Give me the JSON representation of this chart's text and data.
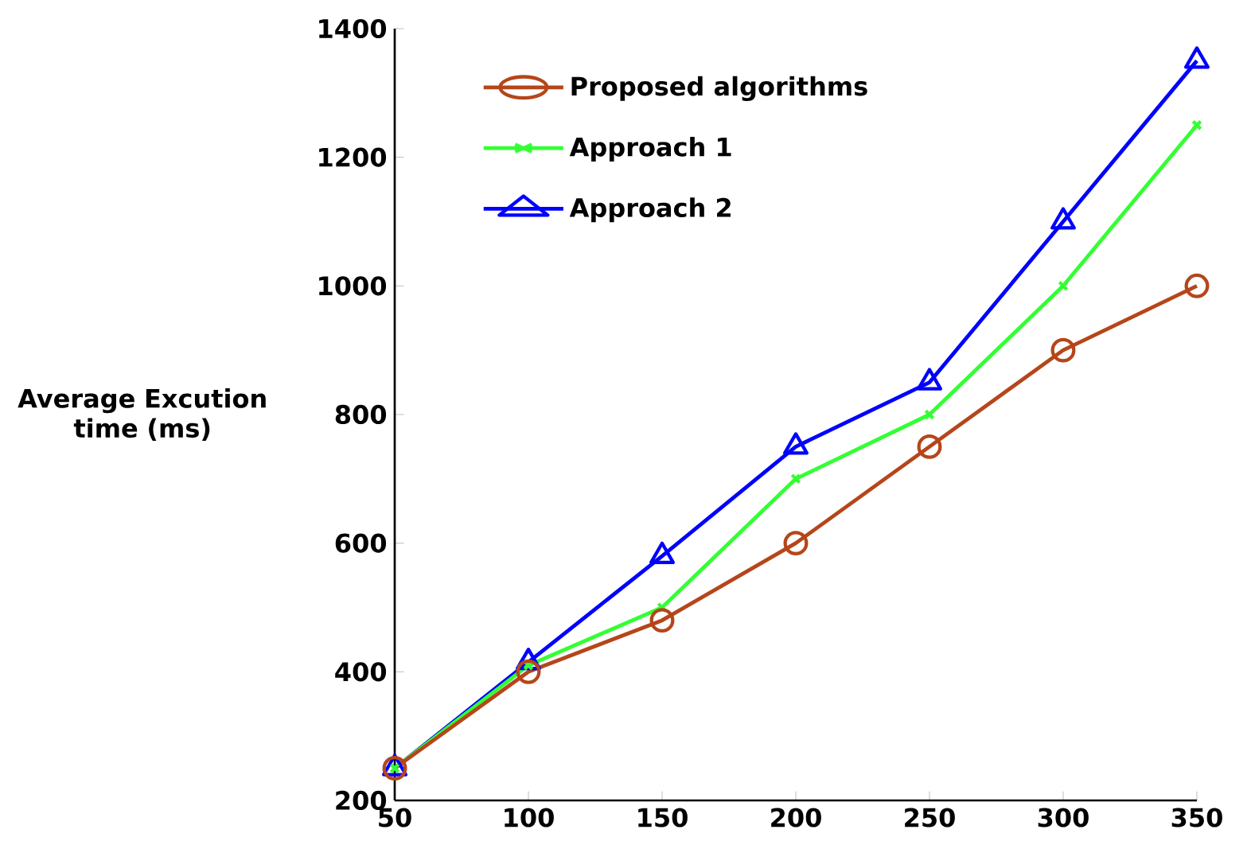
{
  "chart_data": {
    "type": "line",
    "ylabel": "Average Excution time (ms)",
    "x": [
      50,
      100,
      150,
      200,
      250,
      300,
      350
    ],
    "series": [
      {
        "name": "Proposed algorithms",
        "color": "#b5461a",
        "marker": "circle",
        "values": [
          250,
          400,
          480,
          600,
          750,
          900,
          1000
        ]
      },
      {
        "name": "Approach 1",
        "color": "#33ff33",
        "marker": "cross",
        "values": [
          250,
          410,
          500,
          700,
          800,
          1000,
          1250
        ]
      },
      {
        "name": "Approach 2",
        "color": "#0000ff",
        "marker": "triangle",
        "values": [
          250,
          415,
          580,
          750,
          850,
          1100,
          1350
        ]
      }
    ],
    "xlim": [
      50,
      350
    ],
    "xticks": [
      50,
      100,
      150,
      200,
      250,
      300,
      350
    ],
    "ylim": [
      200,
      1400
    ],
    "yticks": [
      200,
      400,
      600,
      800,
      1000,
      1200,
      1400
    ],
    "grid": false,
    "legend": "top left",
    "line_style": "solid"
  }
}
